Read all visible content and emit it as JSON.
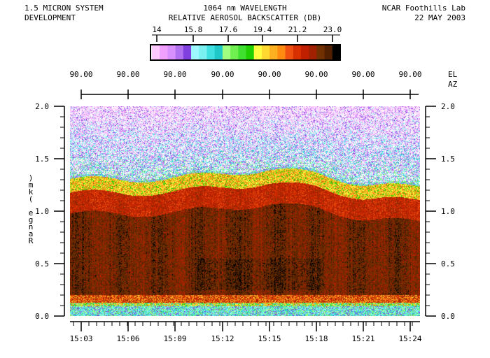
{
  "header": {
    "left_line1": "1.5 MICRON SYSTEM",
    "left_line2": "DEVELOPMENT",
    "center_line1": "1064 nm WAVELENGTH",
    "center_line2": "RELATIVE AEROSOL BACKSCATTER (DB)",
    "right_line1": "NCAR Foothills Lab",
    "right_line2": "22 MAY 2003"
  },
  "colorbar": {
    "ticks": [
      "14",
      "15.8",
      "17.6",
      "19.4",
      "21.2",
      "23.0"
    ],
    "colors": [
      "#ffc8ff",
      "#f0a0ff",
      "#d890ff",
      "#b070f0",
      "#8040e0",
      "#9ef8ff",
      "#7af0f0",
      "#40e0e0",
      "#20c8c8",
      "#a0ff80",
      "#70f050",
      "#40e030",
      "#20d000",
      "#ffff40",
      "#ffd830",
      "#ffb020",
      "#ff8c10",
      "#f05010",
      "#d83000",
      "#c02000",
      "#a02000",
      "#703000",
      "#502000",
      "#000000"
    ]
  },
  "top_axis": {
    "elevation_labels": [
      "90.00",
      "90.00",
      "90.00",
      "90.00",
      "90.00",
      "90.00",
      "90.00",
      "90.00"
    ],
    "el_label": "EL",
    "az_label": "AZ"
  },
  "chart_data": {
    "type": "heatmap",
    "title": "RELATIVE AEROSOL BACKSCATTER (DB)",
    "ylabel": "Range (km)",
    "xlabel": "",
    "ylim": [
      0.0,
      2.0
    ],
    "y_ticks": [
      "0.0",
      "0.5",
      "1.0",
      "1.5",
      "2.0"
    ],
    "x_ticks": [
      "15:03",
      "15:06",
      "15:09",
      "15:12",
      "15:15",
      "15:18",
      "15:21",
      "15:24"
    ],
    "color_scale_db": [
      14,
      23
    ],
    "aerosol_layer_top_km": [
      {
        "time": "15:03",
        "top_km": 1.23
      },
      {
        "time": "15:06",
        "top_km": 1.22
      },
      {
        "time": "15:09",
        "top_km": 1.24
      },
      {
        "time": "15:12",
        "top_km": 1.28
      },
      {
        "time": "15:15",
        "top_km": 1.32
      },
      {
        "time": "15:18",
        "top_km": 1.28
      },
      {
        "time": "15:21",
        "top_km": 1.18
      },
      {
        "time": "15:24",
        "top_km": 1.15
      }
    ],
    "surface_layer_km": 0.15
  }
}
